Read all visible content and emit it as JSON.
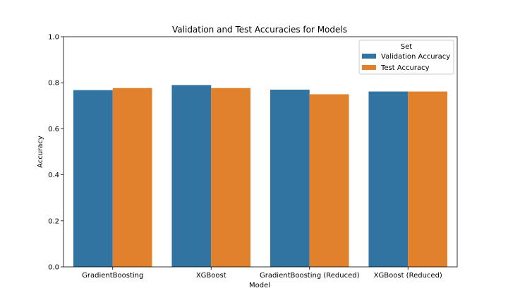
{
  "chart_data": {
    "type": "bar",
    "title": "Validation and Test Accuracies for Models",
    "xlabel": "Model",
    "ylabel": "Accuracy",
    "ylim": [
      0,
      1.0
    ],
    "yticks": [
      "0.0",
      "0.2",
      "0.4",
      "0.6",
      "0.8",
      "1.0"
    ],
    "categories": [
      "GradientBoosting",
      "XGBoost",
      "GradientBoosting (Reduced)",
      "XGBoost (Reduced)"
    ],
    "series": [
      {
        "name": "Validation Accuracy",
        "color": "#3274a1",
        "values": [
          0.768,
          0.79,
          0.77,
          0.762
        ]
      },
      {
        "name": "Test Accuracy",
        "color": "#e1812c",
        "values": [
          0.777,
          0.777,
          0.75,
          0.762
        ]
      }
    ],
    "legend": {
      "title": "Set",
      "position": "top-right"
    },
    "grid": false
  }
}
